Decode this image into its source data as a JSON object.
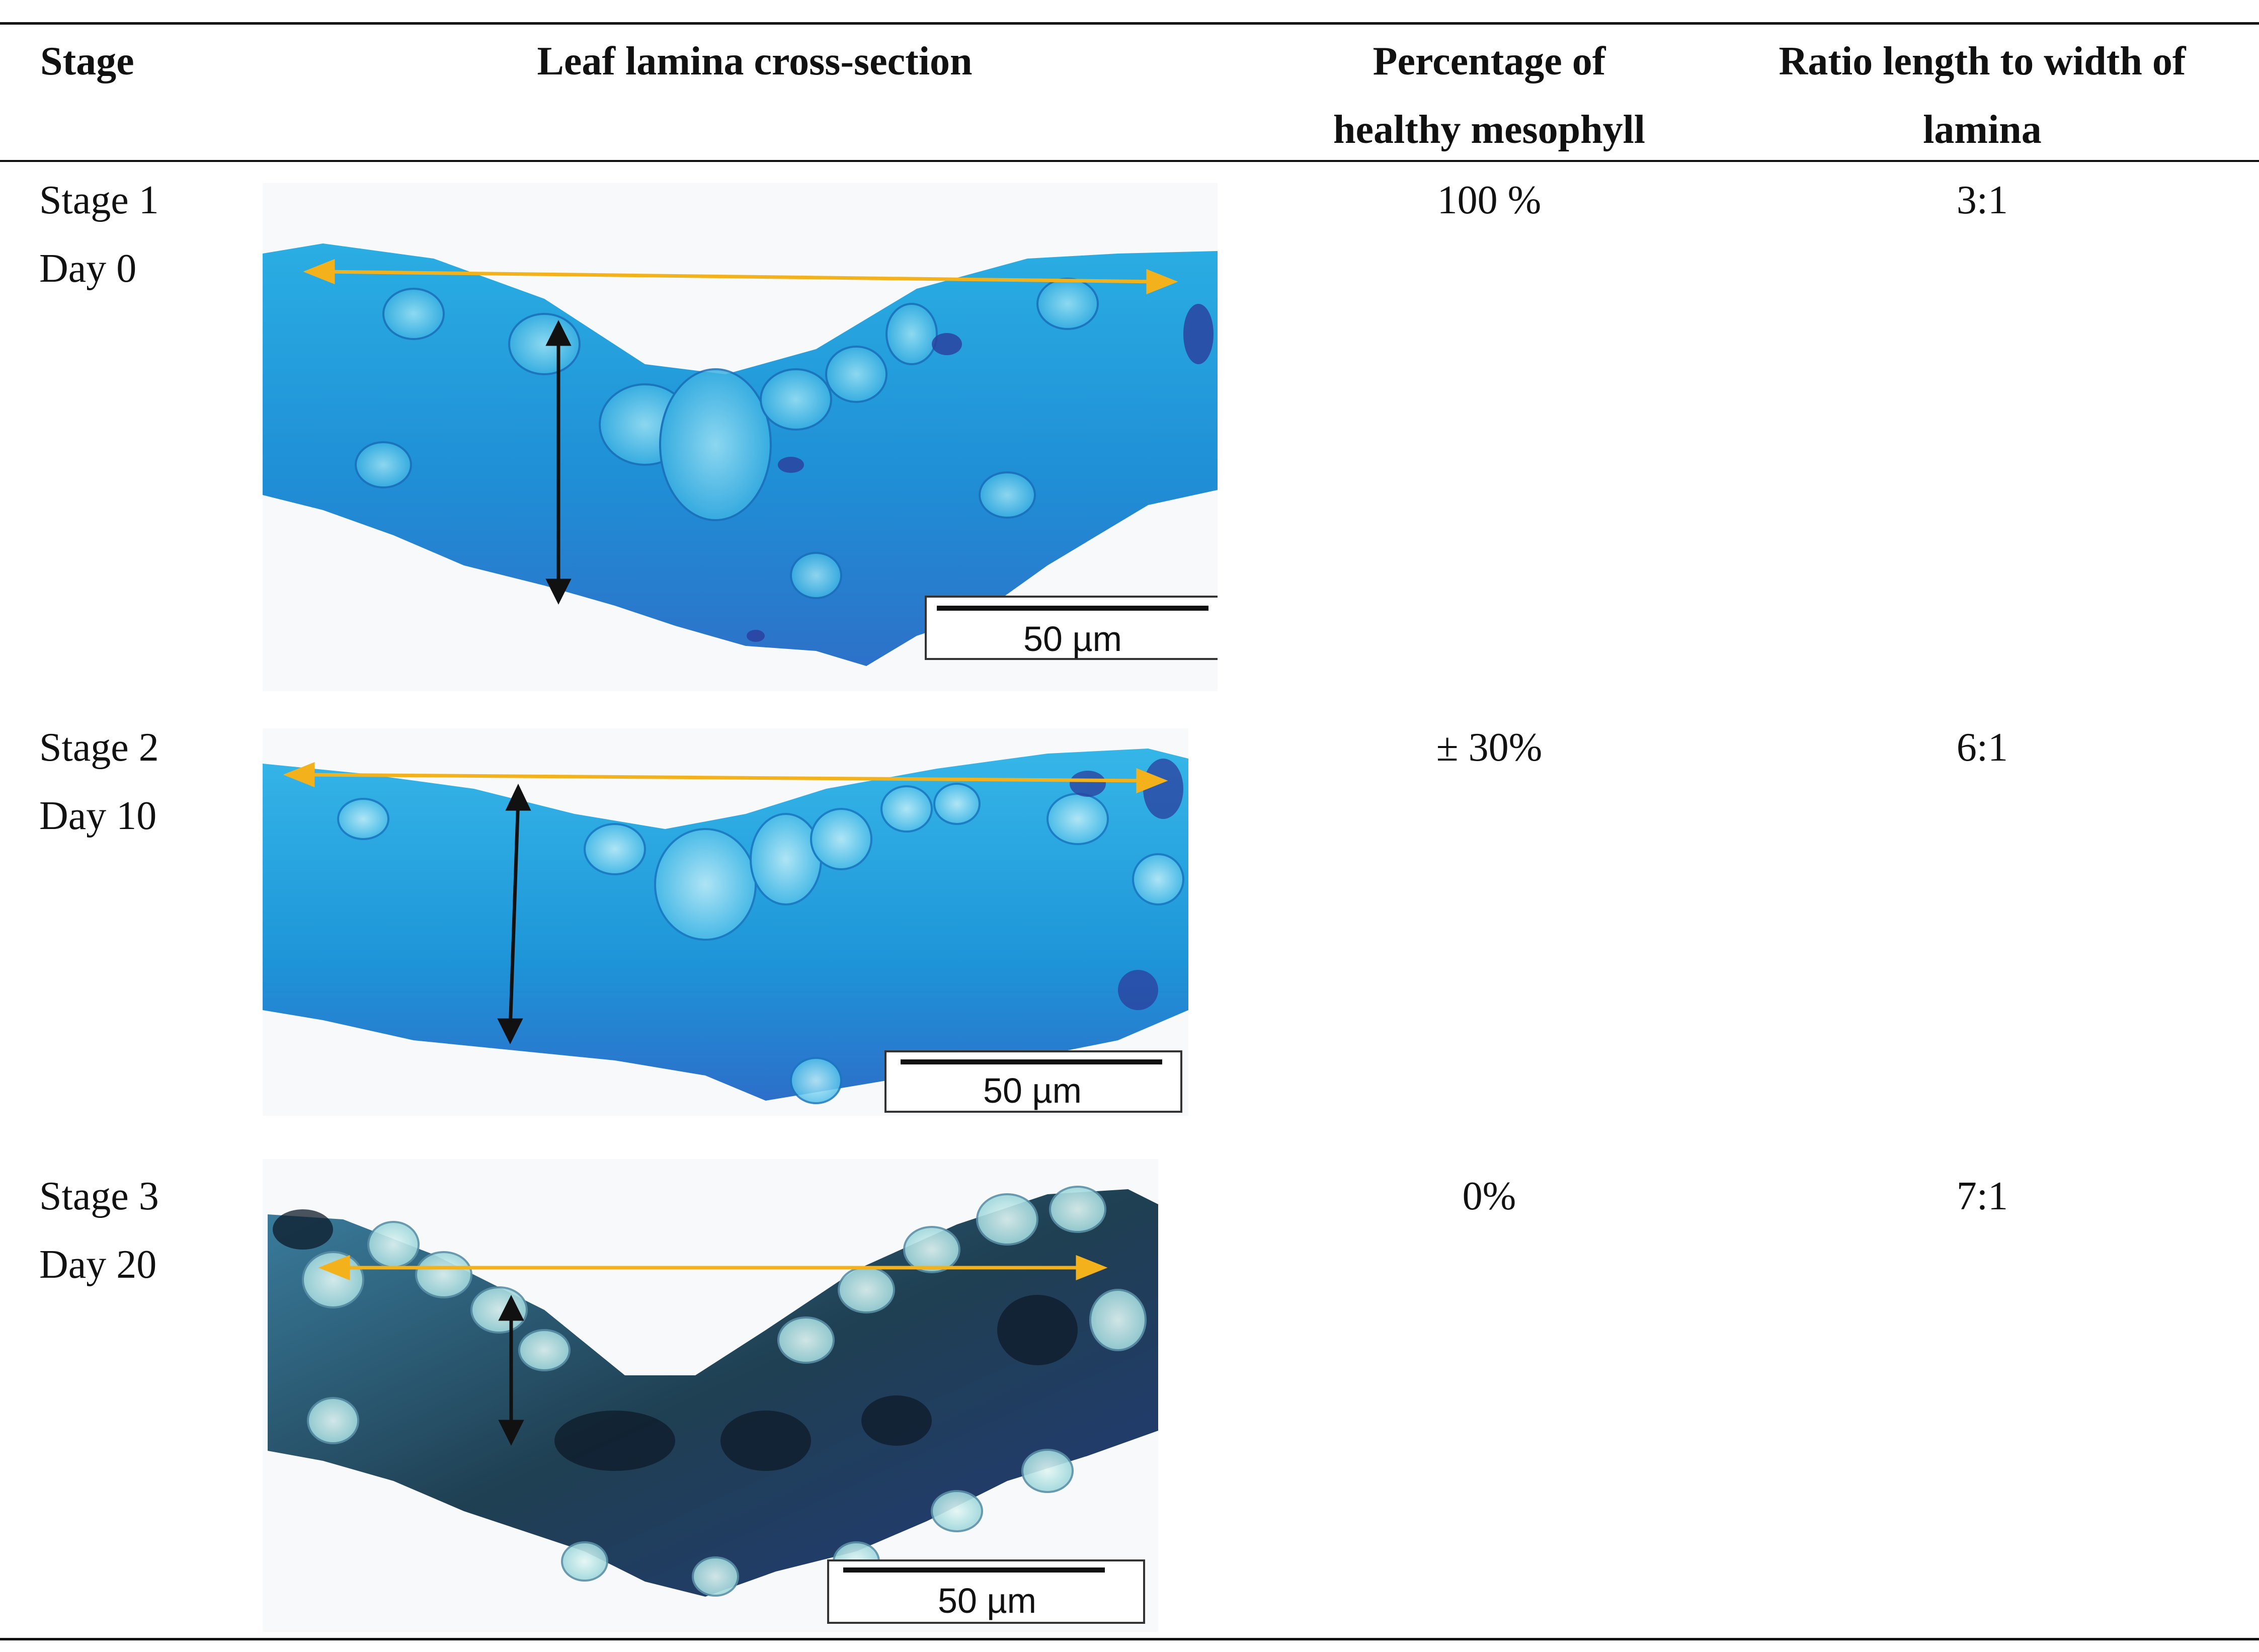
{
  "headers": {
    "stage": "Stage",
    "section": "Leaf lamina cross-section",
    "mesophyll": "Percentage of healthy mesophyll",
    "mesophyll_line1": "Percentage of",
    "mesophyll_line2": "healthy mesophyll",
    "ratio_line1": "Ratio length to width of",
    "ratio_line2": "lamina"
  },
  "rows": [
    {
      "stage": "Stage 1",
      "day": "Day 0",
      "mesophyll": "100 %",
      "ratio": "3:1",
      "scale": "50 µm"
    },
    {
      "stage": "Stage 2",
      "day": "Day 10",
      "mesophyll": "± 30%",
      "ratio": "6:1",
      "scale": "50 µm"
    },
    {
      "stage": "Stage 3",
      "day": "Day 20",
      "mesophyll": "0%",
      "ratio": "7:1",
      "scale": "50 µm"
    }
  ],
  "colors": {
    "healthy_tissue": "#1fa3df",
    "dark_tissue": "#1b3c8a",
    "necrotic": "#0d1b2a",
    "length_arrow": "#f3b21b",
    "width_arrow": "#111111"
  }
}
